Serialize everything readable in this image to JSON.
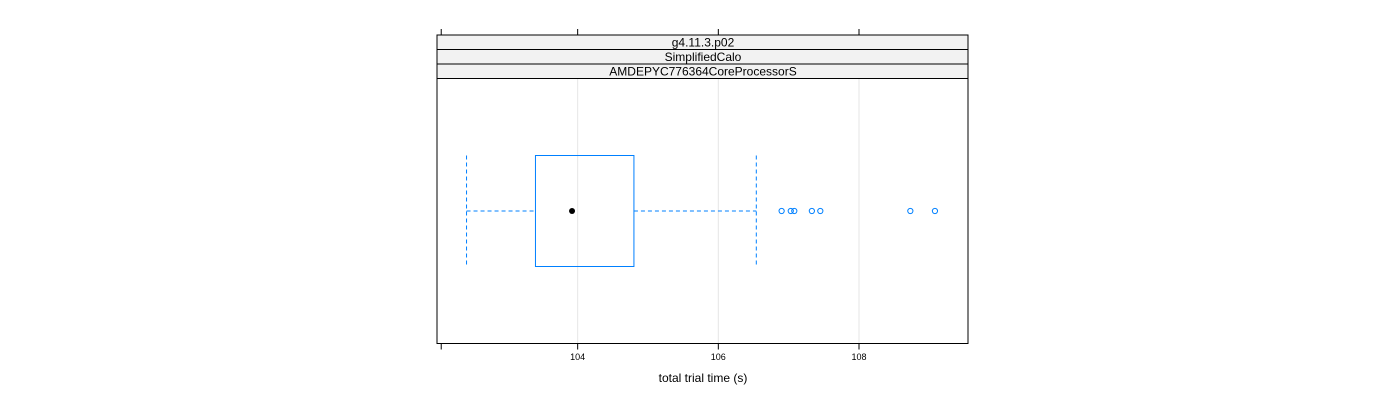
{
  "chart_data": {
    "type": "box",
    "orientation": "horizontal",
    "strips": [
      "g4.11.3.p02",
      "SimplifiedCalo",
      "AMDEPYC776364CoreProcessorS"
    ],
    "xlabel": "total trial time (s)",
    "xlim": [
      102.0,
      109.55
    ],
    "xticks": [
      104,
      106,
      108
    ],
    "tick_labels": [
      "104",
      "106",
      "108"
    ],
    "grid": true,
    "box": {
      "whisker_low": 102.42,
      "q1": 103.4,
      "median": 103.92,
      "q3": 104.8,
      "whisker_high": 106.54
    },
    "outliers": [
      106.9,
      107.03,
      107.08,
      107.33,
      107.45,
      108.73,
      109.08
    ],
    "colors": {
      "box": "#0080ff",
      "median_dot": "#000000",
      "strip_bg": "#f2f2f2",
      "grid": "#e6e6e6"
    }
  }
}
